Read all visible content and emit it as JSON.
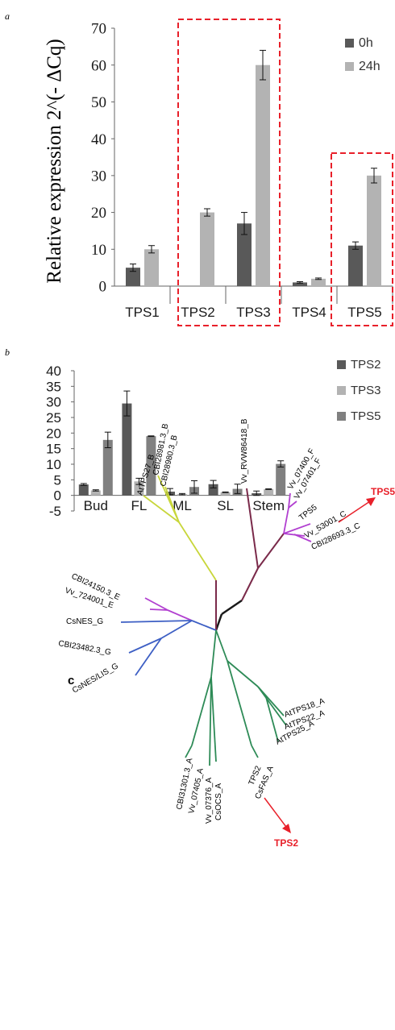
{
  "chart_data": [
    {
      "panel_label": "a",
      "type": "bar",
      "ylabel": "Relative expression 2^(- ΔCq)",
      "categories": [
        "TPS1",
        "TPS2",
        "TPS3",
        "TPS4",
        "TPS5"
      ],
      "ylim": [
        0,
        70
      ],
      "yticks": [
        "0",
        "10",
        "20",
        "30",
        "40",
        "50",
        "60",
        "70"
      ],
      "legend_position": "top-right",
      "series": [
        {
          "name": "0h",
          "color": "#595959",
          "values": [
            5,
            0,
            17,
            1,
            11
          ],
          "errors": [
            1,
            0,
            3,
            0.2,
            1
          ]
        },
        {
          "name": "24h",
          "color": "#b3b3b3",
          "values": [
            10,
            20,
            60,
            2,
            30
          ],
          "errors": [
            1,
            1,
            4,
            0.2,
            2
          ]
        }
      ],
      "highlight_boxes": [
        [
          "TPS2",
          "TPS3"
        ],
        [
          "TPS5"
        ]
      ],
      "highlight_color": "#e8202a"
    },
    {
      "panel_label": "b",
      "type": "bar",
      "categories": [
        "Bud",
        "FL",
        "ML",
        "SL",
        "Stem"
      ],
      "ylim": [
        -5,
        40
      ],
      "yticks": [
        "-5",
        "0",
        "5",
        "10",
        "15",
        "20",
        "25",
        "30",
        "35",
        "40"
      ],
      "legend_position": "top-right",
      "series": [
        {
          "name": "TPS2",
          "color": "#595959",
          "values": [
            3.5,
            29.5,
            1.2,
            3.6,
            0.7
          ],
          "errors": [
            0.3,
            4,
            1,
            1.2,
            0.7
          ]
        },
        {
          "name": "TPS3",
          "color": "#b3b3b3",
          "values": [
            1.6,
            4.5,
            0.4,
            1.0,
            2.0
          ],
          "errors": [
            0.2,
            1,
            0.2,
            0.1,
            0.1
          ]
        },
        {
          "name": "TPS5",
          "color": "#808080",
          "values": [
            17.8,
            19.0,
            2.7,
            2.1,
            10.1
          ],
          "errors": [
            2.5,
            0.1,
            2,
            1.5,
            1
          ]
        }
      ]
    }
  ],
  "panel_c": {
    "label": "c",
    "leaves": {
      "yellow": [
        "CBI28981.3_B",
        "CBI28980.3_B",
        "AtTPS27_B"
      ],
      "maroon": [
        "Vv_RVW86418_B"
      ],
      "purple_right": [
        "Vv_07400_F",
        "Vv_07401_F",
        "TPS5",
        "Vv_53001_C",
        "CBI28693.3_C"
      ],
      "purple_left": [
        "CBI24150.3_E",
        "Vv_724001_E"
      ],
      "blue": [
        "CsNES_G",
        "CBI23482.3_G",
        "CsNES/LIS_G"
      ],
      "green_right": [
        "AtTPS18_A",
        "AtTPS22_A",
        "AtTPS25_A",
        "TPS2",
        "CsFAS_A"
      ],
      "green_left": [
        "CBI31301.3_A",
        "Vv_07405_A",
        "Vv_07376_A",
        "CsOCS_A"
      ]
    },
    "callouts": [
      "TPS5",
      "TPS2"
    ],
    "colors": {
      "yellow": "#c8d63a",
      "maroon": "#7a2a4a",
      "purple": "#b13fd0",
      "blue": "#3d5fc4",
      "green": "#2e8b57",
      "callout": "#e8202a"
    }
  }
}
